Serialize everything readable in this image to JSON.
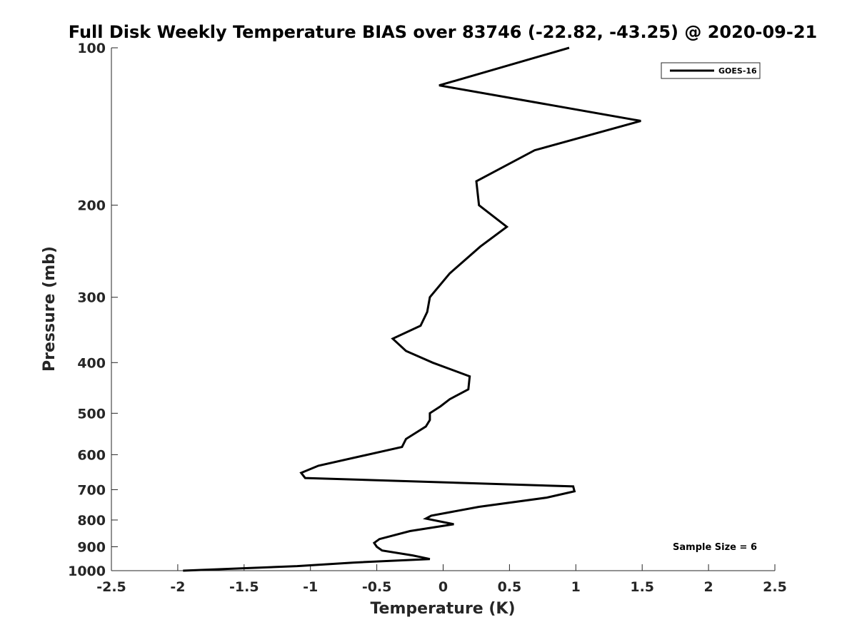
{
  "chart_data": {
    "type": "line",
    "title": "Full Disk Weekly Temperature BIAS over 83746 (-22.82, -43.25) @ 2020-09-21",
    "xlabel": "Temperature (K)",
    "ylabel": "Pressure (mb)",
    "xlim": [
      -2.5,
      2.5
    ],
    "ylim": [
      1000,
      100
    ],
    "y_scale": "log",
    "y_reversed": true,
    "x_ticks": [
      -2.5,
      -2,
      -1.5,
      -1,
      -0.5,
      0,
      0.5,
      1,
      1.5,
      2,
      2.5
    ],
    "x_tick_labels": [
      "-2.5",
      "-2",
      "-1.5",
      "-1",
      "-0.5",
      "0",
      "0.5",
      "1",
      "1.5",
      "2",
      "2.5"
    ],
    "y_ticks": [
      100,
      200,
      300,
      400,
      500,
      600,
      700,
      800,
      900,
      1000
    ],
    "y_tick_labels": [
      "100",
      "200",
      "300",
      "400",
      "500",
      "600",
      "700",
      "800",
      "900",
      "1000"
    ],
    "grid": false,
    "legend_position": "top-right",
    "annotation": "Sample Size = 6",
    "series": [
      {
        "name": "GOES-16",
        "color": "#000000",
        "points": [
          [
            0.95,
            100
          ],
          [
            -0.03,
            118
          ],
          [
            1.49,
            138
          ],
          [
            0.69,
            157
          ],
          [
            0.25,
            180
          ],
          [
            0.27,
            200
          ],
          [
            0.48,
            220
          ],
          [
            0.28,
            240
          ],
          [
            0.05,
            270
          ],
          [
            -0.1,
            300
          ],
          [
            -0.12,
            320
          ],
          [
            -0.17,
            340
          ],
          [
            -0.38,
            360
          ],
          [
            -0.28,
            380
          ],
          [
            -0.08,
            400
          ],
          [
            0.2,
            425
          ],
          [
            0.19,
            450
          ],
          [
            0.05,
            470
          ],
          [
            -0.02,
            485
          ],
          [
            -0.1,
            500
          ],
          [
            -0.1,
            515
          ],
          [
            -0.13,
            530
          ],
          [
            -0.28,
            560
          ],
          [
            -0.31,
            580
          ],
          [
            -0.94,
            630
          ],
          [
            -1.07,
            650
          ],
          [
            -1.04,
            665
          ],
          [
            0.98,
            690
          ],
          [
            0.99,
            705
          ],
          [
            0.78,
            725
          ],
          [
            0.27,
            755
          ],
          [
            -0.09,
            785
          ],
          [
            -0.13,
            795
          ],
          [
            0.08,
            815
          ],
          [
            -0.25,
            840
          ],
          [
            -0.48,
            870
          ],
          [
            -0.52,
            885
          ],
          [
            -0.5,
            900
          ],
          [
            -0.46,
            915
          ],
          [
            -0.23,
            935
          ],
          [
            -0.1,
            950
          ],
          [
            -0.68,
            965
          ],
          [
            -1.1,
            980
          ],
          [
            -1.96,
            1000
          ]
        ]
      }
    ]
  }
}
